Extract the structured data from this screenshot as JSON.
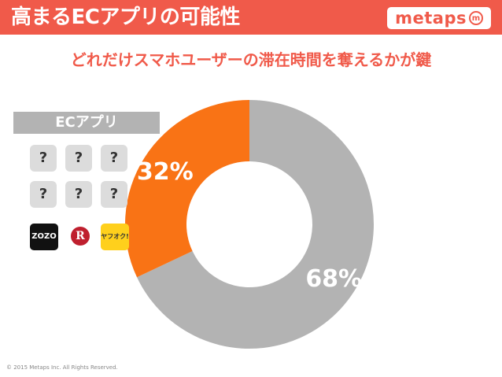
{
  "header": {
    "title": "高まるECアプリの可能性",
    "logo_text": "metaps",
    "logo_mark": "m"
  },
  "subtitle": "どれだけスマホユーザーの滞在時間を奪えるかが鍵",
  "ec_panel": {
    "label": "ECアプリ",
    "unknown_tiles": [
      "?",
      "?",
      "?",
      "?",
      "?",
      "?"
    ],
    "apps": [
      {
        "name": "zozo",
        "label": "ZOZO",
        "icon": "zozotown-icon"
      },
      {
        "name": "rakuten",
        "label": "R",
        "icon": "rakuten-icon"
      },
      {
        "name": "yahuoku",
        "label": "ヤフオク!",
        "icon": "yahuoku-icon"
      }
    ]
  },
  "chart_data": {
    "type": "pie",
    "donut": true,
    "title": "",
    "slices": [
      {
        "label": "68%",
        "value": 68,
        "color": "#b3b3b3"
      },
      {
        "label": "32%",
        "value": 32,
        "color": "#f97315"
      }
    ],
    "legend": "none"
  },
  "footer": {
    "copyright": "© 2015 Metaps Inc. All Rights Reserved."
  }
}
